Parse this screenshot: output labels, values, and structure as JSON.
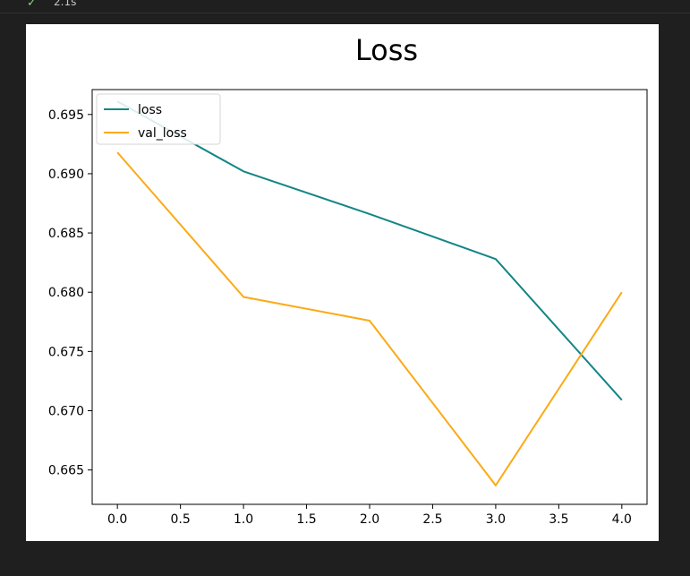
{
  "cell": {
    "status_icon": "check-icon",
    "elapsed": "2.1s"
  },
  "chart_data": {
    "type": "line",
    "title": "Loss",
    "xlabel": "",
    "ylabel": "",
    "x": [
      0,
      1,
      2,
      3,
      4
    ],
    "xlim": [
      -0.2,
      4.2
    ],
    "ylim": [
      0.6621,
      0.6971
    ],
    "xticks": [
      "0.0",
      "0.5",
      "1.0",
      "1.5",
      "2.0",
      "2.5",
      "3.0",
      "3.5",
      "4.0"
    ],
    "yticks": [
      "0.665",
      "0.670",
      "0.675",
      "0.680",
      "0.685",
      "0.690",
      "0.695"
    ],
    "grid": false,
    "legend": "top-left",
    "series": [
      {
        "name": "loss",
        "color": "#138585",
        "values": [
          0.6961,
          0.6902,
          0.6866,
          0.6828,
          0.6709
        ]
      },
      {
        "name": "val_loss",
        "color": "#fbaa16",
        "values": [
          0.6918,
          0.6796,
          0.6776,
          0.6637,
          0.68
        ]
      }
    ]
  }
}
